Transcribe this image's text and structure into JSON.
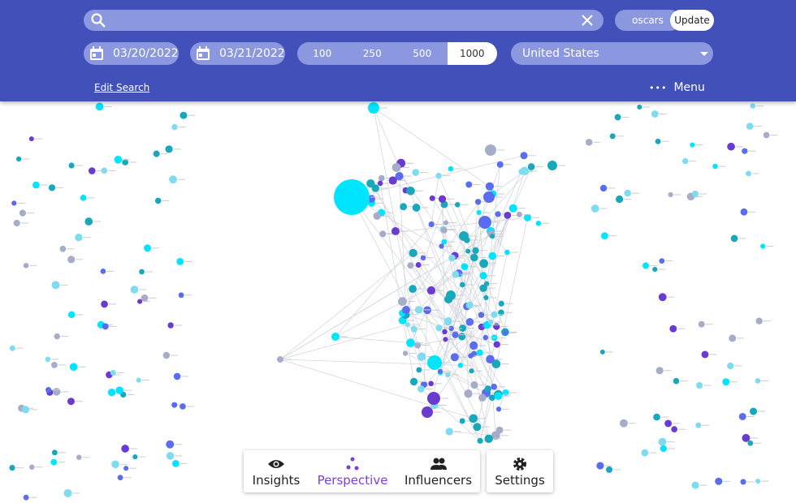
{
  "header": {
    "search_text": "",
    "topic_chip": "oscars",
    "update_button": "Update",
    "start_date": "03/20/2022",
    "end_date": "03/21/2022",
    "limit_options": [
      "100",
      "250",
      "500",
      "1000"
    ],
    "selected_limit": "1000",
    "country": "United States",
    "edit_search": "Edit Search",
    "menu": "Menu"
  },
  "toolbar": {
    "tabs": [
      "Insights",
      "Perspective",
      "Influencers"
    ],
    "active_tab": "Perspective",
    "settings": "Settings"
  }
}
